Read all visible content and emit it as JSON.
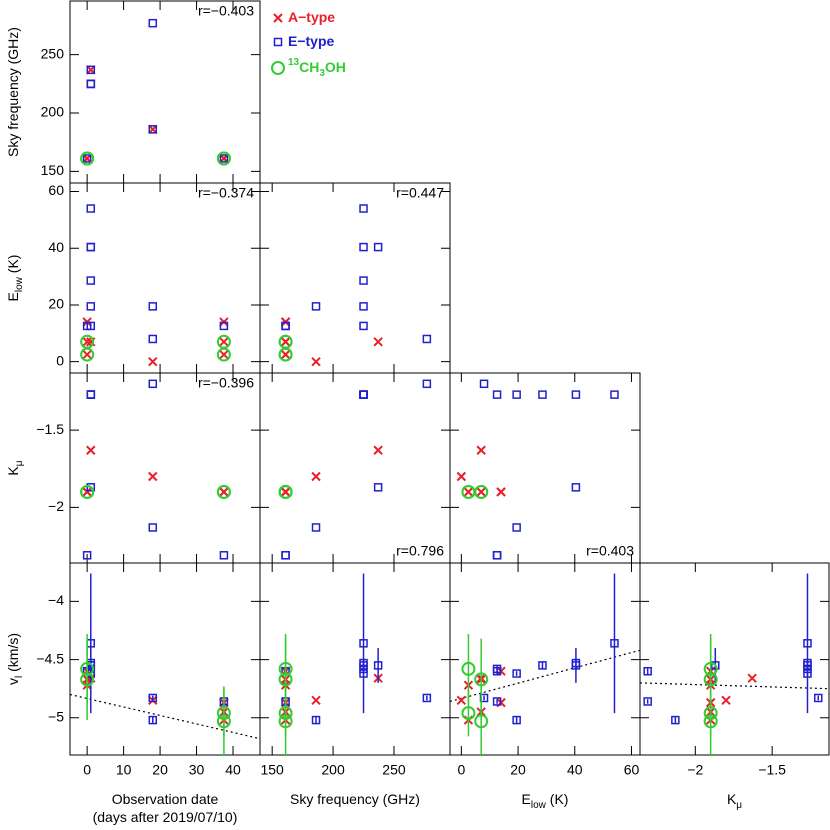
{
  "chart_data": {
    "type": "scatter-matrix",
    "variables": [
      {
        "label": [
          [
            {
              "text": "Observation date"
            }
          ],
          [
            {
              "text": "(days after 2019/07/10)"
            }
          ]
        ],
        "lim": [
          -4.7,
          47.4
        ],
        "ticks": [
          0,
          10,
          20,
          30,
          40
        ]
      },
      {
        "label": [
          [
            {
              "text": "Sky frequency (GHz)"
            }
          ]
        ],
        "lim": [
          140,
          296
        ],
        "ticks": [
          150,
          200,
          250
        ]
      },
      {
        "label": [
          [
            {
              "text": "E"
            },
            {
              "text": "low",
              "sub": true
            },
            {
              "text": " (K)"
            }
          ]
        ],
        "lim": [
          -4,
          63
        ],
        "ticks": [
          0,
          20,
          40,
          60
        ]
      },
      {
        "label": [
          [
            {
              "text": "K"
            },
            {
              "text": "μ",
              "sub": true
            }
          ]
        ],
        "lim": [
          -2.36,
          -1.13
        ],
        "ticks": [
          {
            "value": -2,
            "label": "−2"
          },
          {
            "value": -1.5,
            "label": "−1.5"
          }
        ]
      },
      {
        "label": [
          [
            {
              "text": "v"
            },
            {
              "text": "l",
              "sub": true
            },
            {
              "text": " (km/s)"
            }
          ]
        ],
        "lim": [
          -5.32,
          -3.67
        ],
        "ticks": [
          {
            "value": -4,
            "label": "−4"
          },
          {
            "value": -4.5,
            "label": "−4.5"
          },
          {
            "value": -5,
            "label": "−5"
          }
        ]
      }
    ],
    "series": [
      {
        "name": [
          {
            "text": "A−type"
          }
        ],
        "color": "#e8202a",
        "marker": "cross",
        "values": [
          [
            1,
            18,
            0,
            37.5,
            0,
            37.5,
            0,
            37.5
          ],
          [
            237,
            186,
            161,
            161,
            161,
            161,
            161,
            161
          ],
          [
            7,
            0,
            14,
            14,
            2.5,
            2.5,
            7,
            7
          ],
          [
            -1.63,
            -1.8,
            -1.9,
            -1.9,
            -1.9,
            -1.9,
            -1.9,
            -1.9
          ],
          [
            -4.66,
            -4.85,
            -4.6,
            -4.87,
            -4.72,
            -5.02,
            -4.67,
            -4.95
          ]
        ]
      },
      {
        "name": [
          {
            "text": "E−type"
          }
        ],
        "color": "#2020d0",
        "marker": "square",
        "values": [
          [
            1,
            1,
            1,
            1,
            1,
            1,
            18,
            18,
            0,
            37.5
          ],
          [
            225,
            225,
            225,
            225,
            225,
            237,
            277,
            186,
            161,
            161
          ],
          [
            54,
            40.4,
            28.6,
            19.5,
            12.6,
            40.4,
            8,
            19.5,
            12.6,
            12.6
          ],
          [
            -1.27,
            -1.27,
            -1.27,
            -1.27,
            -1.27,
            -1.87,
            -1.2,
            -2.13,
            -2.31,
            -2.31
          ],
          [
            -4.36,
            -4.53,
            -4.55,
            -4.62,
            -4.58,
            -4.55,
            -4.83,
            -5.02,
            -4.6,
            -4.86
          ]
        ],
        "errors": [
          0.6,
          0.04,
          0.03,
          0.02,
          0.03,
          0.15,
          0.02,
          0.03,
          0.03,
          0.02
        ]
      },
      {
        "name": [
          {
            "text": "13",
            "sup": true
          },
          {
            "text": "CH"
          },
          {
            "text": "3",
            "sub": true
          },
          {
            "text": "OH"
          }
        ],
        "color": "#33cc33",
        "marker": "circle",
        "values": [
          [
            0,
            37.5,
            0,
            37.5
          ],
          [
            161,
            161,
            161,
            161
          ],
          [
            2.5,
            2.5,
            7,
            7
          ],
          [
            -1.9,
            -1.9,
            -1.9,
            -1.9
          ],
          [
            -4.58,
            -4.96,
            -4.67,
            -5.03
          ]
        ],
        "errors": [
          0.3,
          0.2,
          0.35,
          0.3
        ]
      }
    ],
    "correlations": [
      [
        "r=−0.403"
      ],
      [
        "r=−0.374",
        "r=0.447"
      ],
      [
        "r=−0.396",
        "r=0.796",
        "r=0.403"
      ]
    ],
    "correlation_corners": [
      [
        "top-right"
      ],
      [
        "top-right",
        "top-right"
      ],
      [
        "top-right",
        "bottom-right",
        "bottom-right"
      ]
    ],
    "fits": [
      {
        "x": [
          -4.7,
          47.4
        ],
        "y": [
          -4.8,
          -5.18
        ]
      },
      null,
      {
        "x": [
          -4,
          63
        ],
        "y": [
          -4.86,
          -4.42
        ]
      },
      {
        "x": [
          -2.36,
          -1.13
        ],
        "y": [
          -4.7,
          -4.75
        ]
      }
    ]
  }
}
